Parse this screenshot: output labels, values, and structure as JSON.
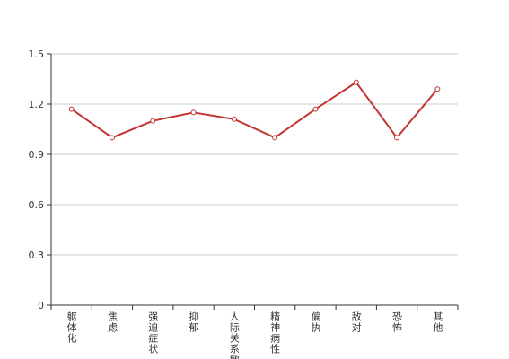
{
  "chart_data": {
    "type": "line",
    "categories": [
      "躯体化",
      "焦虑",
      "强迫症状",
      "抑郁",
      "人际关系敏感",
      "精神病性",
      "偏执",
      "敌对",
      "恐怖",
      "其他"
    ],
    "values": [
      1.17,
      1.0,
      1.1,
      1.15,
      1.11,
      1.0,
      1.17,
      1.33,
      1.0,
      1.29
    ],
    "color": "#c23531",
    "ylim": [
      0,
      1.5
    ],
    "yticks": [
      0,
      0.3,
      0.6,
      0.9,
      1.2,
      1.5
    ],
    "grid": true
  }
}
